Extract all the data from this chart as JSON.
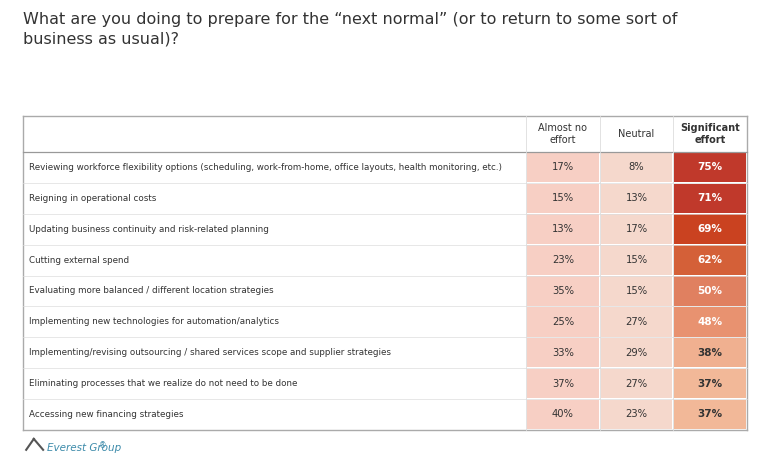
{
  "title": "What are you doing to prepare for the “next normal” (or to return to some sort of\nbusiness as usual)?",
  "title_fontsize": 11.5,
  "col_headers": [
    "Almost no\neffort",
    "Neutral",
    "Significant\neffort"
  ],
  "rows": [
    {
      "label": "Reviewing workforce flexibility options (scheduling, work-from-home, office layouts, health monitoring, etc.)",
      "values": [
        "17%",
        "8%",
        "75%"
      ],
      "sig_value": 75
    },
    {
      "label": "Reigning in operational costs",
      "values": [
        "15%",
        "13%",
        "71%"
      ],
      "sig_value": 71
    },
    {
      "label": "Updating business continuity and risk-related planning",
      "values": [
        "13%",
        "17%",
        "69%"
      ],
      "sig_value": 69
    },
    {
      "label": "Cutting external spend",
      "values": [
        "23%",
        "15%",
        "62%"
      ],
      "sig_value": 62
    },
    {
      "label": "Evaluating more balanced / different location strategies",
      "values": [
        "35%",
        "15%",
        "50%"
      ],
      "sig_value": 50
    },
    {
      "label": "Implementing new technologies for automation/analytics",
      "values": [
        "25%",
        "27%",
        "48%"
      ],
      "sig_value": 48
    },
    {
      "label": "Implementing/revising outsourcing / shared services scope and supplier strategies",
      "values": [
        "33%",
        "29%",
        "38%"
      ],
      "sig_value": 38
    },
    {
      "label": "Eliminating processes that we realize do not need to be done",
      "values": [
        "37%",
        "27%",
        "37%"
      ],
      "sig_value": 37
    },
    {
      "label": "Accessing new financing strategies",
      "values": [
        "40%",
        "23%",
        "37%"
      ],
      "sig_value": 37
    }
  ],
  "sig_colors": {
    "75": "#c0392b",
    "71": "#c0392b",
    "69": "#c9401e",
    "62": "#d4603a",
    "50": "#e08060",
    "48": "#e89070",
    "38": "#f0b090",
    "37": "#f2b898"
  },
  "almost_no_color": "#f7cfc4",
  "neutral_color": "#f5d8cc",
  "table_border": "#aaaaaa",
  "inner_border": "#dddddd",
  "header_row_border": "#999999",
  "text_color_dark": "#333333",
  "text_color_white": "#ffffff",
  "footer_text": "Everest Group",
  "footer_reg": "®",
  "footer_color": "#3d8baa",
  "logo_color": "#555555",
  "background_color": "#ffffff"
}
